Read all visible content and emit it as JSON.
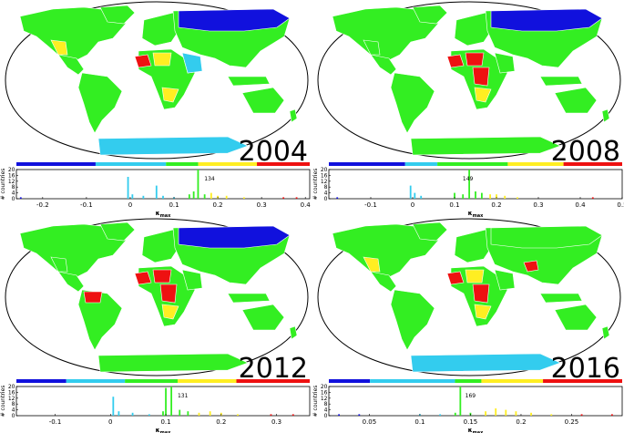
{
  "colors": {
    "ocean": "#ffffff",
    "land": "#33ee22",
    "scale": [
      "#1111dd",
      "#33ccee",
      "#33ee22",
      "#ffee22",
      "#ee1111"
    ]
  },
  "panels": [
    {
      "year": "2004",
      "xlabel": "κ",
      "xlabel_sub": "max",
      "ylabel": "# countries",
      "scalebar": [
        {
          "color": "#1111dd",
          "frac": 0.27
        },
        {
          "color": "#33ccee",
          "frac": 0.24
        },
        {
          "color": "#33ee22",
          "frac": 0.11
        },
        {
          "color": "#ffee22",
          "frac": 0.2
        },
        {
          "color": "#ee1111",
          "frac": 0.18
        }
      ],
      "chart_data": {
        "type": "bar",
        "xlim": [
          -0.26,
          0.41
        ],
        "ylim": [
          0,
          20
        ],
        "xticks": [
          "-0.2",
          "-0.1",
          "0",
          "0.1",
          "0.2",
          "0.3",
          "0.4"
        ],
        "xtick_values": [
          -0.2,
          -0.1,
          0,
          0.1,
          0.2,
          0.3,
          0.4
        ],
        "yticks": [
          "0",
          "4",
          "8",
          "12",
          "16",
          "20"
        ],
        "annotation": "134",
        "annotation_x": 0.165,
        "bars": [
          {
            "x": -0.25,
            "y": 1,
            "c": 0
          },
          {
            "x": -0.005,
            "y": 15,
            "c": 1
          },
          {
            "x": 0.005,
            "y": 3,
            "c": 1
          },
          {
            "x": 0.03,
            "y": 2,
            "c": 1
          },
          {
            "x": 0.06,
            "y": 9,
            "c": 1
          },
          {
            "x": 0.075,
            "y": 2,
            "c": 1
          },
          {
            "x": 0.1,
            "y": 1,
            "c": 1
          },
          {
            "x": 0.135,
            "y": 3,
            "c": 2
          },
          {
            "x": 0.145,
            "y": 5,
            "c": 2
          },
          {
            "x": 0.155,
            "y": 20,
            "c": 2
          },
          {
            "x": 0.17,
            "y": 3,
            "c": 2
          },
          {
            "x": 0.185,
            "y": 4,
            "c": 3
          },
          {
            "x": 0.2,
            "y": 2,
            "c": 3
          },
          {
            "x": 0.22,
            "y": 2,
            "c": 3
          },
          {
            "x": 0.26,
            "y": 1,
            "c": 3
          },
          {
            "x": 0.35,
            "y": 1,
            "c": 4
          },
          {
            "x": 0.38,
            "y": 1,
            "c": 4
          }
        ]
      },
      "regions": [
        {
          "name": "russia",
          "c": 0
        },
        {
          "name": "west-africa",
          "c": 4
        },
        {
          "name": "sahel",
          "c": 3
        },
        {
          "name": "southern-africa",
          "c": 3
        },
        {
          "name": "arabia",
          "c": 1
        },
        {
          "name": "mexico",
          "c": 3
        },
        {
          "name": "antarctica",
          "c": 1
        }
      ]
    },
    {
      "year": "2008",
      "xlabel": "κ",
      "xlabel_sub": "max",
      "ylabel": "# countries",
      "scalebar": [
        {
          "color": "#1111dd",
          "frac": 0.26
        },
        {
          "color": "#33ccee",
          "frac": 0.11
        },
        {
          "color": "#33ee22",
          "frac": 0.24
        },
        {
          "color": "#ffee22",
          "frac": 0.19
        },
        {
          "color": "#ee1111",
          "frac": 0.2
        }
      ],
      "chart_data": {
        "type": "bar",
        "xlim": [
          -0.2,
          0.5
        ],
        "ylim": [
          0,
          20
        ],
        "xticks": [
          "-0.1",
          "0",
          "0.1",
          "0.2",
          "0.3",
          "0.4",
          "0.5"
        ],
        "xtick_values": [
          -0.1,
          0,
          0.1,
          0.2,
          0.3,
          0.4,
          0.5
        ],
        "yticks": [
          "0",
          "4",
          "8",
          "12",
          "16",
          "20"
        ],
        "annotation": "149",
        "annotation_x": 0.115,
        "bars": [
          {
            "x": -0.18,
            "y": 1,
            "c": 0
          },
          {
            "x": -0.005,
            "y": 9,
            "c": 1
          },
          {
            "x": 0.005,
            "y": 4,
            "c": 1
          },
          {
            "x": 0.02,
            "y": 2,
            "c": 1
          },
          {
            "x": 0.1,
            "y": 4,
            "c": 2
          },
          {
            "x": 0.12,
            "y": 3,
            "c": 2
          },
          {
            "x": 0.135,
            "y": 20,
            "c": 2
          },
          {
            "x": 0.15,
            "y": 5,
            "c": 2
          },
          {
            "x": 0.165,
            "y": 4,
            "c": 2
          },
          {
            "x": 0.185,
            "y": 3,
            "c": 3
          },
          {
            "x": 0.2,
            "y": 3,
            "c": 3
          },
          {
            "x": 0.22,
            "y": 2,
            "c": 3
          },
          {
            "x": 0.25,
            "y": 1,
            "c": 3
          },
          {
            "x": 0.43,
            "y": 1,
            "c": 4
          }
        ]
      },
      "regions": [
        {
          "name": "russia",
          "c": 0
        },
        {
          "name": "west-africa",
          "c": 4
        },
        {
          "name": "sahel",
          "c": 4
        },
        {
          "name": "central-africa",
          "c": 4
        },
        {
          "name": "southern-africa",
          "c": 3
        },
        {
          "name": "mexico",
          "c": 2
        },
        {
          "name": "antarctica",
          "c": 2
        }
      ]
    },
    {
      "year": "2012",
      "xlabel": "κ",
      "xlabel_sub": "max",
      "ylabel": "# countries",
      "scalebar": [
        {
          "color": "#1111dd",
          "frac": 0.17
        },
        {
          "color": "#33ccee",
          "frac": 0.2
        },
        {
          "color": "#33ee22",
          "frac": 0.18
        },
        {
          "color": "#ffee22",
          "frac": 0.2
        },
        {
          "color": "#ee1111",
          "frac": 0.25
        }
      ],
      "chart_data": {
        "type": "bar",
        "xlim": [
          -0.17,
          0.36
        ],
        "ylim": [
          0,
          20
        ],
        "xticks": [
          "-0.1",
          "0",
          "0.1",
          "0.2",
          "0.3"
        ],
        "xtick_values": [
          -0.1,
          0,
          0.1,
          0.2,
          0.3
        ],
        "yticks": [
          "0",
          "4",
          "8",
          "12",
          "16",
          "20"
        ],
        "annotation": "131",
        "annotation_x": 0.118,
        "bars": [
          {
            "x": 0.005,
            "y": 13,
            "c": 1
          },
          {
            "x": 0.015,
            "y": 3,
            "c": 1
          },
          {
            "x": 0.04,
            "y": 2,
            "c": 1
          },
          {
            "x": 0.07,
            "y": 1,
            "c": 1
          },
          {
            "x": 0.095,
            "y": 3,
            "c": 2
          },
          {
            "x": 0.1,
            "y": 19,
            "c": 2
          },
          {
            "x": 0.11,
            "y": 20,
            "c": 2
          },
          {
            "x": 0.125,
            "y": 4,
            "c": 2
          },
          {
            "x": 0.14,
            "y": 3,
            "c": 2
          },
          {
            "x": 0.16,
            "y": 2,
            "c": 3
          },
          {
            "x": 0.18,
            "y": 3,
            "c": 3
          },
          {
            "x": 0.2,
            "y": 2,
            "c": 3
          },
          {
            "x": 0.23,
            "y": 1,
            "c": 3
          },
          {
            "x": 0.29,
            "y": 1,
            "c": 4
          },
          {
            "x": 0.33,
            "y": 1,
            "c": 4
          }
        ]
      },
      "regions": [
        {
          "name": "russia",
          "c": 0
        },
        {
          "name": "west-africa",
          "c": 4
        },
        {
          "name": "sahel",
          "c": 4
        },
        {
          "name": "central-africa",
          "c": 4
        },
        {
          "name": "southern-africa",
          "c": 3
        },
        {
          "name": "south-america-north",
          "c": 4
        },
        {
          "name": "mexico",
          "c": 2
        },
        {
          "name": "antarctica",
          "c": 2
        }
      ]
    },
    {
      "year": "2016",
      "xlabel": "κ",
      "xlabel_sub": "max",
      "ylabel": "# countries",
      "scalebar": [
        {
          "color": "#1111dd",
          "frac": 0.14
        },
        {
          "color": "#33ccee",
          "frac": 0.29
        },
        {
          "color": "#33ee22",
          "frac": 0.09
        },
        {
          "color": "#ffee22",
          "frac": 0.21
        },
        {
          "color": "#ee1111",
          "frac": 0.27
        }
      ],
      "chart_data": {
        "type": "bar",
        "xlim": [
          0.01,
          0.3
        ],
        "ylim": [
          0,
          20
        ],
        "xticks": [
          "0.05",
          "0.1",
          "0.15",
          "0.2",
          "0.25"
        ],
        "xtick_values": [
          0.05,
          0.1,
          0.15,
          0.2,
          0.25
        ],
        "yticks": [
          "0",
          "4",
          "8",
          "12",
          "16",
          "20"
        ],
        "annotation": "169",
        "annotation_x": 0.143,
        "bars": [
          {
            "x": 0.02,
            "y": 1,
            "c": 0
          },
          {
            "x": 0.04,
            "y": 1,
            "c": 0
          },
          {
            "x": 0.1,
            "y": 1,
            "c": 1
          },
          {
            "x": 0.12,
            "y": 1,
            "c": 1
          },
          {
            "x": 0.135,
            "y": 2,
            "c": 2
          },
          {
            "x": 0.14,
            "y": 20,
            "c": 2
          },
          {
            "x": 0.15,
            "y": 2,
            "c": 2
          },
          {
            "x": 0.165,
            "y": 3,
            "c": 3
          },
          {
            "x": 0.175,
            "y": 5,
            "c": 3
          },
          {
            "x": 0.185,
            "y": 4,
            "c": 3
          },
          {
            "x": 0.195,
            "y": 3,
            "c": 3
          },
          {
            "x": 0.21,
            "y": 2,
            "c": 3
          },
          {
            "x": 0.23,
            "y": 1,
            "c": 3
          },
          {
            "x": 0.26,
            "y": 1,
            "c": 4
          },
          {
            "x": 0.29,
            "y": 1,
            "c": 4
          }
        ]
      },
      "regions": [
        {
          "name": "russia",
          "c": 2
        },
        {
          "name": "west-africa",
          "c": 4
        },
        {
          "name": "sahel",
          "c": 3
        },
        {
          "name": "central-africa",
          "c": 4
        },
        {
          "name": "southern-africa",
          "c": 3
        },
        {
          "name": "afghanistan",
          "c": 4
        },
        {
          "name": "mexico",
          "c": 3
        },
        {
          "name": "antarctica",
          "c": 1
        }
      ]
    }
  ]
}
